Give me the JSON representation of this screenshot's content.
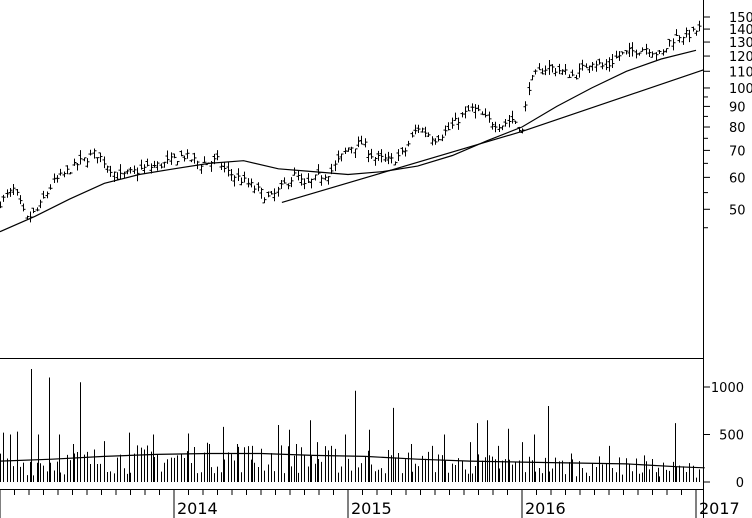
{
  "chart_data": [
    {
      "type": "ohlc",
      "scale": "log",
      "ylim": [
        40,
        155
      ],
      "y_ticks": [
        "150",
        "140",
        "130",
        "120",
        "110",
        "100",
        "90",
        "80",
        "70",
        "60",
        "50"
      ],
      "x_labels": [
        "2014",
        "2015",
        "2016",
        "2017"
      ],
      "price_anchors": {
        "t": [
          2013.0,
          2013.08,
          2013.15,
          2013.22,
          2013.3,
          2013.45,
          2013.55,
          2013.68,
          2013.82,
          2013.95,
          2014.05,
          2014.15,
          2014.25,
          2014.3,
          2014.42,
          2014.55,
          2014.7,
          2014.75,
          2014.82,
          2014.9,
          2015.0,
          2015.08,
          2015.15,
          2015.25,
          2015.32,
          2015.4,
          2015.5,
          2015.58,
          2015.65,
          2015.72,
          2015.8,
          2015.88,
          2015.95,
          2016.0,
          2016.04,
          2016.08,
          2016.15,
          2016.3,
          2016.4,
          2016.48,
          2016.55,
          2016.65,
          2016.72,
          2016.8,
          2016.85,
          2016.9,
          2016.97,
          2017.05
        ],
        "close": [
          52,
          56,
          47,
          50,
          58,
          65,
          69,
          60,
          63,
          65,
          68,
          65,
          66,
          62,
          58,
          53,
          61,
          57,
          60,
          62,
          71,
          73,
          67,
          66,
          69,
          80,
          75,
          79,
          85,
          89,
          83,
          81,
          84,
          78,
          102,
          108,
          113,
          107,
          117,
          112,
          120,
          124,
          126,
          120,
          131,
          135,
          136,
          143
        ]
      },
      "moving_average": {
        "t": [
          2013.0,
          2013.2,
          2013.4,
          2013.6,
          2013.8,
          2014.0,
          2014.2,
          2014.4,
          2014.6,
          2014.8,
          2015.0,
          2015.2,
          2015.4,
          2015.6,
          2015.8,
          2016.0,
          2016.2,
          2016.4,
          2016.6,
          2016.8,
          2017.0
        ],
        "values": [
          44,
          48,
          53,
          58,
          61,
          63,
          65,
          66,
          63,
          62,
          61,
          62,
          64,
          68,
          74,
          80,
          90,
          100,
          110,
          118,
          124
        ]
      },
      "trendlines": [
        {
          "t": [
            2014.62,
            2016.0
          ],
          "values": [
            52,
            78
          ]
        },
        {
          "t": [
            2016.0,
            2017.3
          ],
          "values": [
            78,
            111
          ]
        }
      ]
    },
    {
      "type": "bar",
      "ylim": [
        0,
        1250
      ],
      "y_ticks": [
        "1000",
        "500",
        "0"
      ],
      "moving_average": {
        "t": [
          2013.0,
          2013.3,
          2013.6,
          2013.9,
          2014.2,
          2014.5,
          2014.8,
          2015.1,
          2015.4,
          2015.7,
          2016.0,
          2016.3,
          2016.6,
          2016.9,
          2017.05
        ],
        "values": [
          220,
          240,
          270,
          290,
          300,
          300,
          280,
          270,
          240,
          220,
          210,
          200,
          190,
          160,
          150
        ]
      },
      "spikes": {
        "t": [
          2013.02,
          2013.06,
          2013.1,
          2013.18,
          2013.22,
          2013.28,
          2013.34,
          2013.42,
          2013.46,
          2013.6,
          2013.74,
          2013.88,
          2014.08,
          2014.2,
          2014.28,
          2014.36,
          2014.45,
          2014.5,
          2014.6,
          2014.66,
          2014.7,
          2014.78,
          2014.82,
          2014.9,
          2014.98,
          2015.04,
          2015.12,
          2015.26,
          2015.36,
          2015.48,
          2015.55,
          2015.7,
          2015.74,
          2015.8,
          2015.86,
          2015.92,
          2016.0,
          2016.07,
          2016.15,
          2016.28,
          2016.4,
          2016.5,
          2016.6,
          2016.7,
          2016.78,
          2016.88,
          2016.96,
          2017.04
        ],
        "values": [
          520,
          500,
          530,
          1190,
          500,
          1100,
          500,
          400,
          1050,
          430,
          520,
          500,
          510,
          400,
          580,
          400,
          380,
          350,
          600,
          550,
          400,
          650,
          420,
          380,
          500,
          960,
          550,
          780,
          400,
          380,
          500,
          420,
          620,
          650,
          380,
          560,
          420,
          500,
          800,
          300,
          200,
          380,
          250,
          280,
          150,
          620,
          100,
          130
        ]
      }
    }
  ]
}
